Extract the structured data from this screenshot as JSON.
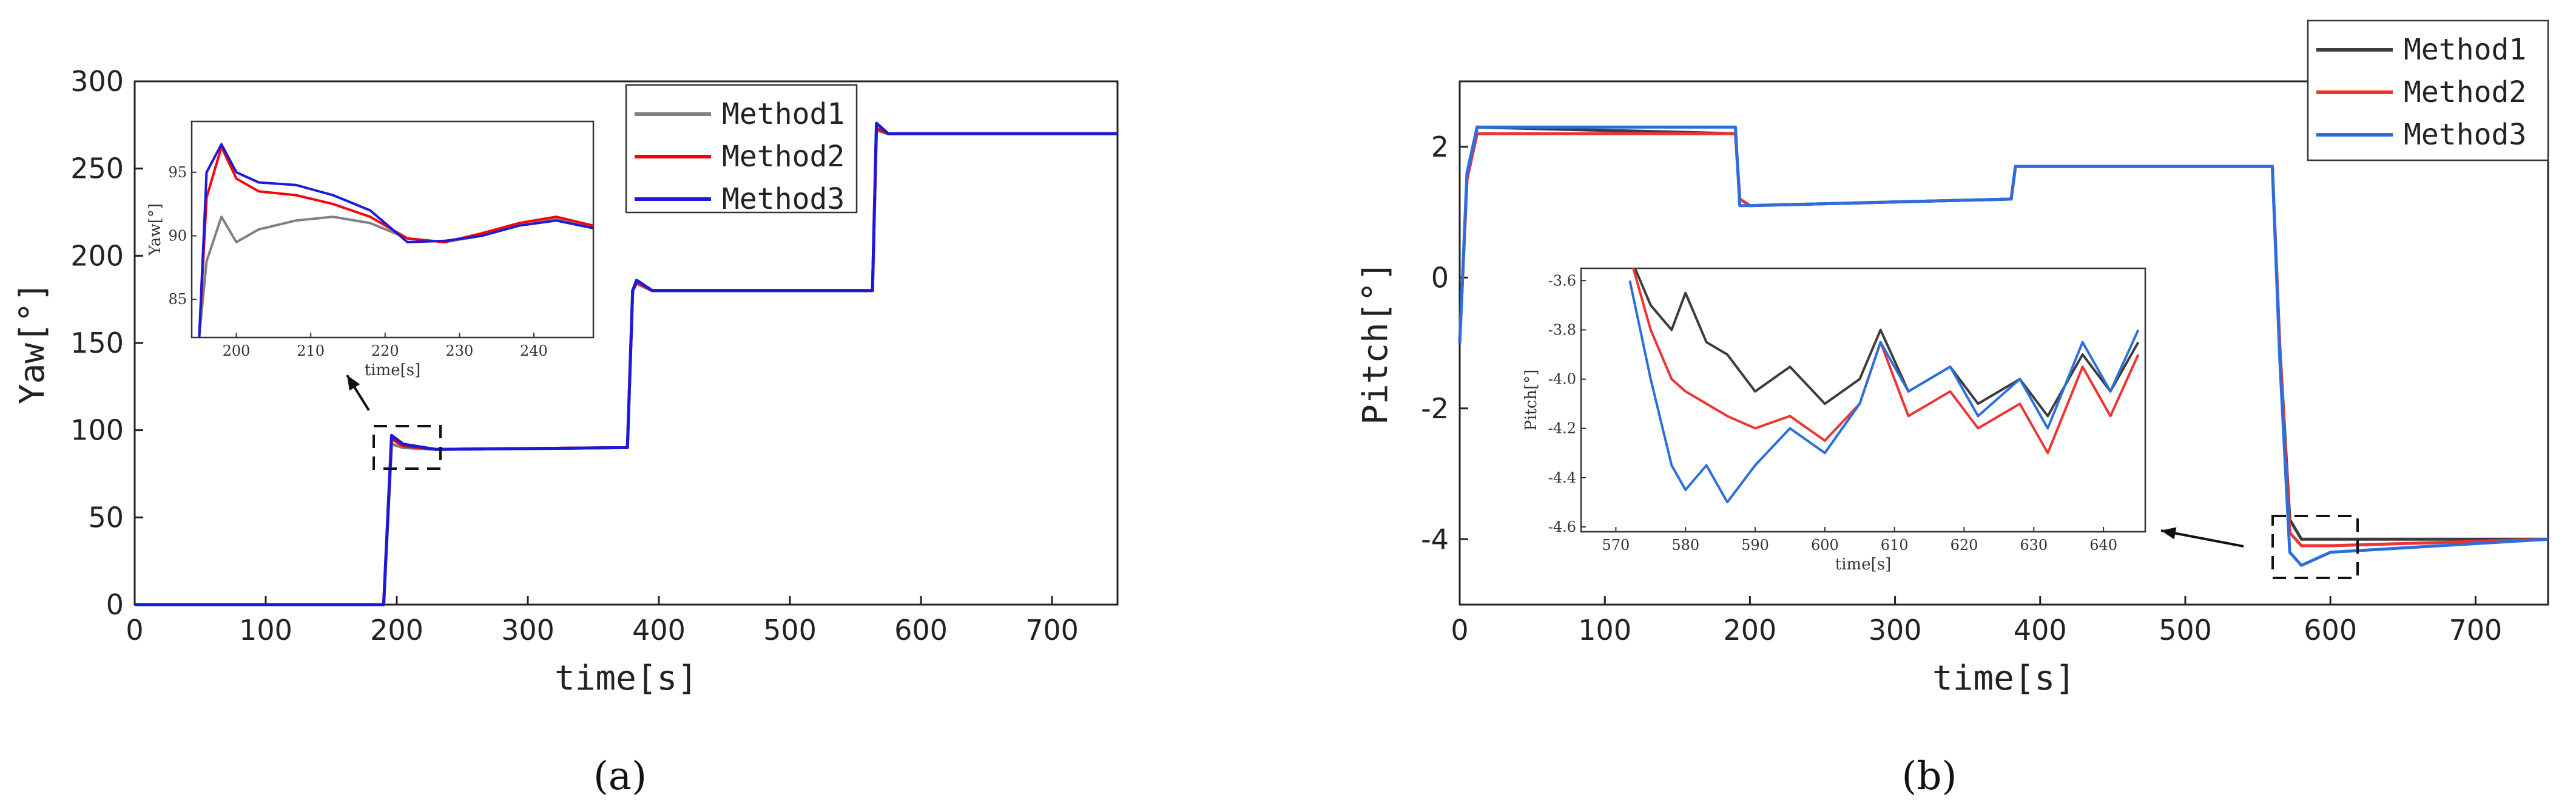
{
  "chart_data": [
    {
      "id": "a",
      "type": "line",
      "panel_label": "(a)",
      "xlabel": "time[s]",
      "ylabel": "Yaw[°]",
      "xlim": [
        0,
        750
      ],
      "ylim": [
        0,
        300
      ],
      "xticks": [
        "0",
        "100",
        "200",
        "300",
        "400",
        "500",
        "600",
        "700"
      ],
      "yticks": [
        "0",
        "50",
        "100",
        "150",
        "200",
        "250",
        "300"
      ],
      "legend": [
        "Method1",
        "Method2",
        "Method3"
      ],
      "colors": [
        "#808080",
        "#ff0000",
        "#1a1adb"
      ],
      "series": [
        {
          "name": "Method1",
          "x": [
            0,
            185,
            190,
            196,
            205,
            230,
            376,
            380,
            383,
            395,
            560,
            563,
            566,
            575,
            750
          ],
          "y": [
            0,
            0,
            0,
            92,
            90,
            89,
            90,
            180,
            184,
            180,
            180,
            180,
            272,
            270,
            270
          ]
        },
        {
          "name": "Method2",
          "x": [
            0,
            185,
            190,
            196,
            205,
            230,
            376,
            380,
            383,
            395,
            560,
            563,
            566,
            575,
            750
          ],
          "y": [
            0,
            0,
            0,
            95,
            91,
            89,
            90,
            180,
            185,
            180,
            180,
            180,
            273,
            270,
            270
          ]
        },
        {
          "name": "Method3",
          "x": [
            0,
            185,
            190,
            196,
            205,
            230,
            376,
            380,
            383,
            395,
            560,
            563,
            566,
            575,
            750
          ],
          "y": [
            0,
            0,
            0,
            97,
            92,
            89,
            90,
            180,
            186,
            180,
            180,
            180,
            276,
            270,
            270
          ]
        }
      ],
      "inset": {
        "xlabel": "time[s]",
        "ylabel": "Yaw[°]",
        "xlim": [
          194,
          248
        ],
        "ylim": [
          82,
          99
        ],
        "xticks": [
          "200",
          "210",
          "220",
          "230",
          "240"
        ],
        "yticks": [
          "85",
          "90",
          "95"
        ],
        "series": [
          {
            "name": "Method1",
            "x": [
              195,
              196,
              198,
              200,
              203,
              208,
              213,
              218,
              223,
              228,
              233,
              238,
              243,
              248
            ],
            "y": [
              82,
              88,
              91.5,
              89.5,
              90.5,
              91.2,
              91.5,
              91,
              89.8,
              89.5,
              90,
              90.8,
              91.3,
              90.8
            ]
          },
          {
            "name": "Method2",
            "x": [
              195,
              196,
              198,
              200,
              203,
              208,
              213,
              218,
              223,
              228,
              233,
              238,
              243,
              248
            ],
            "y": [
              82,
              93,
              97,
              94.5,
              93.5,
              93.2,
              92.5,
              91.5,
              89.8,
              89.5,
              90.2,
              91,
              91.5,
              90.8
            ]
          },
          {
            "name": "Method3",
            "x": [
              195,
              196,
              198,
              200,
              203,
              208,
              213,
              218,
              223,
              228,
              233,
              238,
              243,
              248
            ],
            "y": [
              82,
              95,
              97.2,
              95,
              94.2,
              94,
              93.2,
              92,
              89.5,
              89.6,
              90,
              90.8,
              91.2,
              90.6
            ]
          }
        ]
      }
    },
    {
      "id": "b",
      "type": "line",
      "panel_label": "(b)",
      "xlabel": "time[s]",
      "ylabel": "Pitch[°]",
      "xlim": [
        0,
        750
      ],
      "ylim": [
        -5,
        3
      ],
      "xticks": [
        "0",
        "100",
        "200",
        "300",
        "400",
        "500",
        "600",
        "700"
      ],
      "yticks": [
        "-4",
        "-2",
        "0",
        "2"
      ],
      "legend": [
        "Method1",
        "Method2",
        "Method3"
      ],
      "colors": [
        "#3c3c3c",
        "#ee3333",
        "#2a6fdb"
      ],
      "series": [
        {
          "name": "Method1",
          "x": [
            0,
            5,
            12,
            190,
            193,
            200,
            380,
            383,
            390,
            560,
            565,
            572,
            580,
            600,
            750
          ],
          "y": [
            -1,
            1.5,
            2.3,
            2.2,
            1.2,
            1.1,
            1.2,
            1.7,
            1.7,
            1.7,
            -1,
            -3.7,
            -4.0,
            -4.0,
            -4.0
          ]
        },
        {
          "name": "Method2",
          "x": [
            0,
            5,
            12,
            190,
            193,
            200,
            380,
            383,
            390,
            560,
            565,
            572,
            580,
            600,
            750
          ],
          "y": [
            -1,
            1.5,
            2.2,
            2.2,
            1.2,
            1.1,
            1.2,
            1.7,
            1.7,
            1.7,
            -1,
            -3.9,
            -4.1,
            -4.1,
            -4.0
          ]
        },
        {
          "name": "Method3",
          "x": [
            0,
            5,
            12,
            190,
            193,
            200,
            380,
            383,
            390,
            560,
            565,
            572,
            580,
            600,
            750
          ],
          "y": [
            -1,
            1.6,
            2.3,
            2.3,
            1.1,
            1.1,
            1.2,
            1.7,
            1.7,
            1.7,
            -1.2,
            -4.2,
            -4.4,
            -4.2,
            -4.0
          ]
        }
      ],
      "inset": {
        "xlabel": "time[s]",
        "ylabel": "Pitch[°]",
        "xlim": [
          565,
          646
        ],
        "ylim": [
          -4.62,
          -3.55
        ],
        "xticks": [
          "570",
          "580",
          "590",
          "600",
          "610",
          "620",
          "630",
          "640"
        ],
        "yticks": [
          "-3.6",
          "-3.8",
          "-4.0",
          "-4.2",
          "-4.4",
          "-4.6"
        ],
        "series": [
          {
            "name": "Method1",
            "x": [
              572,
              575,
              578,
              580,
              583,
              586,
              590,
              595,
              600,
              605,
              608,
              612,
              618,
              622,
              628,
              632,
              637,
              641,
              645
            ],
            "y": [
              -3.5,
              -3.7,
              -3.8,
              -3.65,
              -3.85,
              -3.9,
              -4.05,
              -3.95,
              -4.1,
              -4.0,
              -3.8,
              -4.05,
              -3.95,
              -4.1,
              -4.0,
              -4.15,
              -3.9,
              -4.05,
              -3.85
            ]
          },
          {
            "name": "Method2",
            "x": [
              572,
              575,
              578,
              580,
              583,
              586,
              590,
              595,
              600,
              605,
              608,
              612,
              618,
              622,
              628,
              632,
              637,
              641,
              645
            ],
            "y": [
              -3.5,
              -3.8,
              -4.0,
              -4.05,
              -4.1,
              -4.15,
              -4.2,
              -4.15,
              -4.25,
              -4.1,
              -3.85,
              -4.15,
              -4.05,
              -4.2,
              -4.1,
              -4.3,
              -3.95,
              -4.15,
              -3.9
            ]
          },
          {
            "name": "Method3",
            "x": [
              572,
              575,
              578,
              580,
              583,
              586,
              590,
              595,
              600,
              605,
              608,
              612,
              618,
              622,
              628,
              632,
              637,
              641,
              645
            ],
            "y": [
              -3.6,
              -4.0,
              -4.35,
              -4.45,
              -4.35,
              -4.5,
              -4.35,
              -4.2,
              -4.3,
              -4.1,
              -3.85,
              -4.05,
              -3.95,
              -4.15,
              -4.0,
              -4.2,
              -3.85,
              -4.05,
              -3.8
            ]
          }
        ]
      }
    }
  ]
}
